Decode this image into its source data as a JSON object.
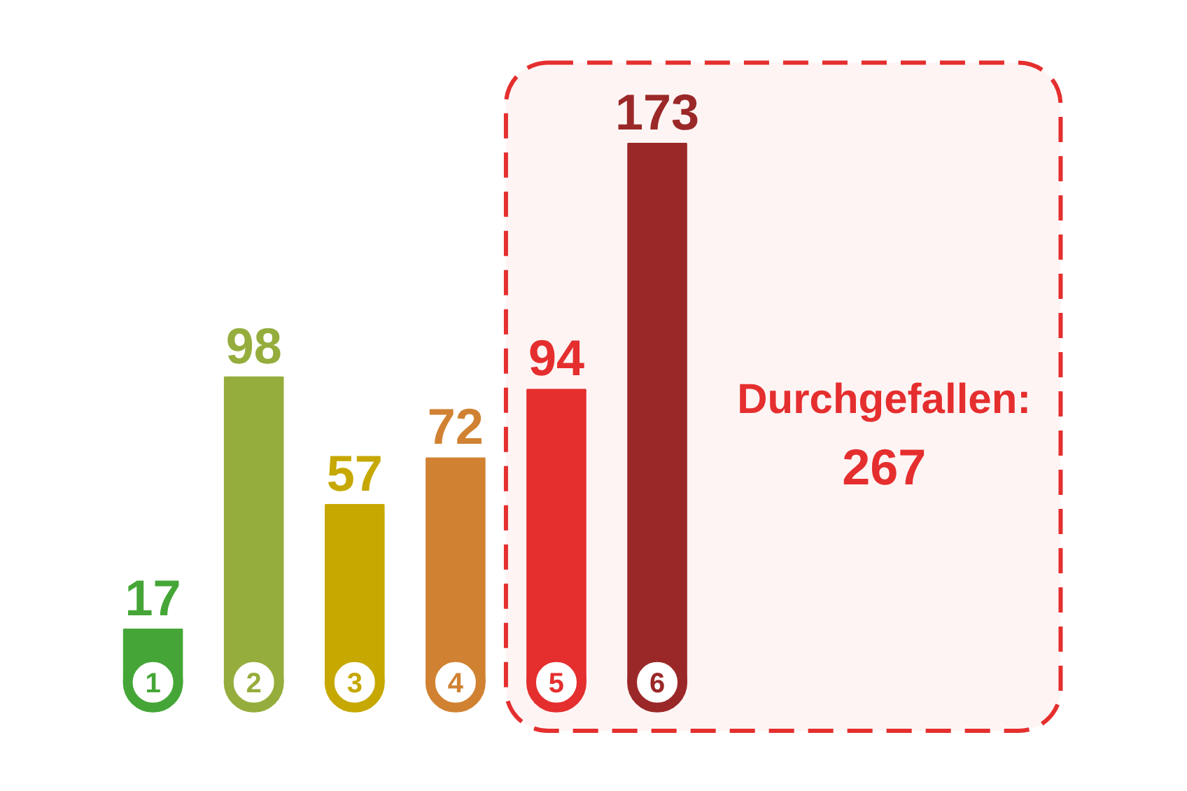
{
  "chart_data": {
    "type": "bar",
    "categories": [
      "1",
      "2",
      "3",
      "4",
      "5",
      "6"
    ],
    "values": [
      17,
      98,
      57,
      72,
      94,
      173
    ],
    "colors": [
      "#45a637",
      "#95ad3c",
      "#c6a800",
      "#d08232",
      "#e52e2e",
      "#9b2828"
    ],
    "data_labels": true,
    "bands": [
      {
        "axis": "x",
        "from": "5",
        "to": "6",
        "label": "Durchgefallen: 267",
        "color": "#e52e2e"
      }
    ]
  }
}
